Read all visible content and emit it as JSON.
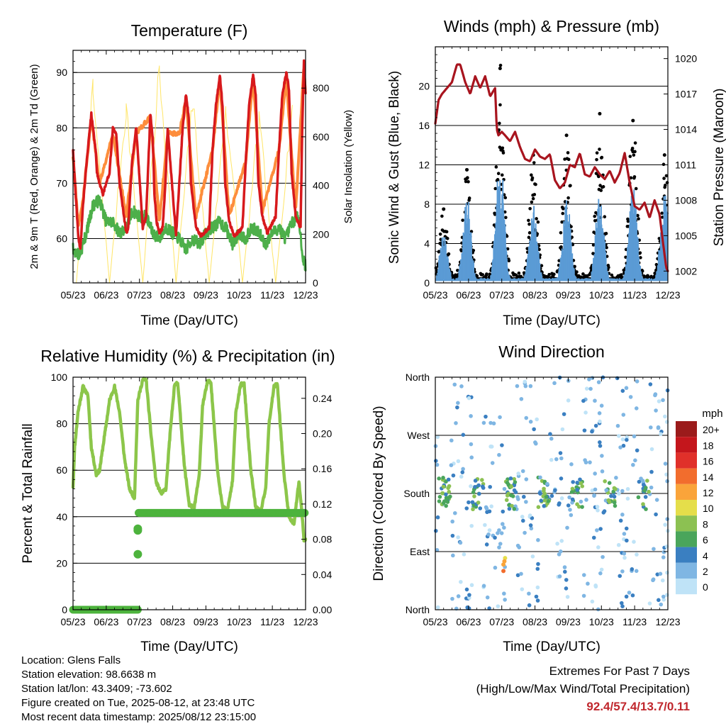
{
  "colors": {
    "temp_2m": "#d7191c",
    "temp_9m": "#fd8d3c",
    "dewpoint": "#4daf4a",
    "solar": "#ffe566",
    "wind": "#5b9bd5",
    "gust": "#000000",
    "pressure": "#a8141e",
    "rh": "#8cc64a",
    "precip": "#4db33d"
  },
  "chart_data": [
    {
      "type": "line",
      "id": "temperature",
      "title": "Temperature (F)",
      "xlabel": "Time (Day/UTC)",
      "ylabel": "2m & 9m T (Red, Orange) & 2m Td (Green)",
      "y2label": "Solar Insolation (Yellow)",
      "x_ticks": [
        "05/23",
        "06/23",
        "07/23",
        "08/23",
        "09/23",
        "10/23",
        "11/23",
        "12/23"
      ],
      "xlim": [
        0,
        7
      ],
      "ylim": [
        52,
        94
      ],
      "yticks": [
        60,
        70,
        80,
        90
      ],
      "y2lim": [
        0,
        955
      ],
      "y2ticks": [
        0,
        200,
        400,
        600,
        800
      ],
      "grid": "horizontal",
      "series": [
        {
          "color_key": "temp_2m",
          "x": [
            0,
            0.08,
            0.16,
            0.22,
            0.3,
            0.38,
            0.55,
            0.6,
            0.64,
            0.68,
            0.72,
            0.8,
            0.9,
            1.1,
            1.2,
            1.3,
            1.4,
            1.58,
            1.62,
            1.66,
            1.7,
            1.78,
            1.9,
            2.1,
            2.2,
            2.33,
            2.4,
            2.45,
            2.52,
            2.6,
            2.7,
            2.78,
            2.85,
            3.1,
            3.2,
            3.3,
            3.4,
            3.48,
            3.55,
            3.7,
            3.85,
            4.1,
            4.2,
            4.3,
            4.42,
            4.5,
            4.58,
            4.7,
            4.85,
            5.1,
            5.2,
            5.3,
            5.42,
            5.5,
            5.58,
            5.7,
            5.85,
            6.1,
            6.2,
            6.3,
            6.42,
            6.5,
            6.58,
            6.7,
            6.85,
            6.9,
            6.95,
            7.0
          ],
          "y": [
            76,
            68,
            60,
            58,
            66,
            72,
            82.5,
            80,
            78,
            76,
            72,
            70,
            68,
            72,
            80,
            79,
            70,
            62,
            61,
            62,
            66,
            74,
            80,
            62,
            64,
            82.5,
            78,
            68,
            63,
            61,
            62,
            70,
            80,
            60.5,
            70,
            80,
            86,
            82,
            70,
            62,
            60.5,
            62,
            76,
            84,
            89.5,
            84,
            70,
            63,
            60.5,
            62,
            74,
            84,
            89.5,
            86,
            70,
            64,
            61,
            64,
            76,
            86,
            90,
            87,
            72,
            64,
            62,
            80,
            92,
            86
          ]
        },
        {
          "color_key": "temp_9m",
          "x": [
            0,
            0.16,
            0.3,
            0.55,
            0.8,
            1.2,
            1.6,
            1.9,
            2.33,
            2.6,
            2.85,
            3.2,
            3.4,
            3.7,
            4.2,
            4.42,
            4.7,
            5.2,
            5.42,
            5.7,
            6.2,
            6.42,
            6.7,
            6.95,
            7.0
          ],
          "y": [
            75,
            62,
            67,
            82,
            70,
            79,
            64,
            79,
            82,
            63,
            79,
            79,
            85,
            64,
            76,
            89,
            64,
            74,
            89,
            65,
            76,
            89,
            65,
            91,
            86
          ]
        },
        {
          "color_key": "dewpoint",
          "x": [
            0,
            0.2,
            0.4,
            0.6,
            0.8,
            1.0,
            1.2,
            1.4,
            1.6,
            1.8,
            2.0,
            2.2,
            2.4,
            2.6,
            2.8,
            3.0,
            3.2,
            3.4,
            3.6,
            3.8,
            4.0,
            4.2,
            4.4,
            4.6,
            4.8,
            5.0,
            5.2,
            5.4,
            5.6,
            5.8,
            6.0,
            6.2,
            6.4,
            6.6,
            6.8,
            6.9,
            7.0
          ],
          "y": [
            58,
            57,
            61,
            66,
            67,
            63,
            63,
            61,
            62,
            65,
            64,
            64,
            61,
            60,
            62,
            61,
            60,
            58,
            60,
            59,
            61,
            62,
            63,
            62,
            59,
            61,
            60,
            62,
            61,
            59,
            61,
            62,
            60,
            63,
            64,
            57,
            55
          ]
        },
        {
          "color_key": "solar",
          "axis": "y2",
          "x": [
            0.1,
            0.6,
            1.1,
            1.6,
            2.1,
            2.6,
            3.1,
            3.6,
            4.1,
            4.6,
            5.1,
            5.6,
            6.1,
            6.6
          ],
          "y": [
            0,
            840,
            0,
            780,
            0,
            950,
            0,
            800,
            0,
            780,
            0,
            720,
            0,
            790
          ]
        }
      ]
    },
    {
      "type": "scatter",
      "id": "winds",
      "title": "Winds (mph) & Pressure (mb)",
      "xlabel": "Time (Day/UTC)",
      "ylabel": "Sonic Wind & Gust (Blue, Black)",
      "y2label": "Station Pressure (Maroon)",
      "x_ticks": [
        "05/23",
        "06/23",
        "07/23",
        "08/23",
        "09/23",
        "10/23",
        "11/23",
        "12/23"
      ],
      "xlim": [
        0,
        7
      ],
      "ylim": [
        0,
        24
      ],
      "yticks": [
        0,
        4,
        8,
        12,
        16,
        20
      ],
      "y2lim": [
        1001,
        1021
      ],
      "y2ticks": [
        1002,
        1005,
        1008,
        1011,
        1014,
        1017,
        1020
      ],
      "grid": "horizontal",
      "wind_peaks": [
        [
          0.25,
          5
        ],
        [
          0.95,
          9
        ],
        [
          1.95,
          13.5
        ],
        [
          2.95,
          8
        ],
        [
          3.95,
          9
        ],
        [
          4.95,
          9.5
        ],
        [
          5.95,
          10
        ],
        [
          6.9,
          9.5
        ]
      ],
      "gust_peaks": [
        [
          0.25,
          7.5
        ],
        [
          0.95,
          11.5
        ],
        [
          1.95,
          21.8
        ],
        [
          2.95,
          13
        ],
        [
          3.95,
          15
        ],
        [
          4.95,
          17.2
        ],
        [
          5.95,
          16.5
        ],
        [
          6.9,
          13
        ]
      ],
      "pressure": {
        "x": [
          0,
          0.1,
          0.2,
          0.35,
          0.5,
          0.65,
          0.75,
          0.9,
          1.05,
          1.2,
          1.35,
          1.5,
          1.65,
          1.8,
          1.85,
          1.9,
          2.0,
          2.1,
          2.25,
          2.4,
          2.55,
          2.7,
          2.85,
          3.0,
          3.15,
          3.3,
          3.45,
          3.6,
          3.75,
          3.9,
          4.05,
          4.2,
          4.35,
          4.5,
          4.65,
          4.8,
          4.95,
          5.1,
          5.25,
          5.4,
          5.55,
          5.7,
          5.85,
          6.0,
          6.15,
          6.3,
          6.45,
          6.6,
          6.75,
          6.85,
          6.95,
          7.0
        ],
        "y": [
          1014.5,
          1016.5,
          1017,
          1017.5,
          1018,
          1019.5,
          1019.5,
          1018,
          1017,
          1018.5,
          1017.5,
          1018.5,
          1016.8,
          1017.5,
          1014,
          1013.5,
          1013.8,
          1013.5,
          1013,
          1013.8,
          1012.5,
          1011.5,
          1011.3,
          1012.3,
          1011.7,
          1011.5,
          1011.9,
          1009.7,
          1009,
          1009.5,
          1011,
          1010.8,
          1012,
          1010.2,
          1010,
          1010.8,
          1010.2,
          1009.8,
          1010.5,
          1009.5,
          1010.3,
          1012,
          1009.5,
          1007.5,
          1007.2,
          1007.8,
          1006.5,
          1008,
          1006.8,
          1004.5,
          1002.3,
          1002
        ]
      }
    },
    {
      "type": "line",
      "id": "humidity",
      "title": "Relative Humidity (%) & Precipitation (in)",
      "xlabel": "Time (Day/UTC)",
      "ylabel": "Percent & Total Rainfall",
      "x_ticks": [
        "05/23",
        "06/23",
        "07/23",
        "08/23",
        "09/23",
        "10/23",
        "11/23",
        "12/23"
      ],
      "xlim": [
        0,
        7
      ],
      "ylim": [
        0,
        100
      ],
      "yticks": [
        0,
        20,
        40,
        60,
        80,
        100
      ],
      "y2lim": [
        0,
        0.264
      ],
      "y2ticks": [
        0.0,
        0.04,
        0.08,
        0.12,
        0.16,
        0.2,
        0.24
      ],
      "grid": "horizontal",
      "series": [
        {
          "color_key": "rh",
          "x": [
            0,
            0.05,
            0.15,
            0.3,
            0.45,
            0.55,
            0.7,
            0.8,
            0.95,
            1.1,
            1.25,
            1.4,
            1.55,
            1.7,
            1.85,
            1.95,
            2.1,
            2.2,
            2.35,
            2.5,
            2.65,
            2.8,
            2.9,
            3.05,
            3.15,
            3.35,
            3.5,
            3.65,
            3.8,
            3.9,
            4.05,
            4.15,
            4.35,
            4.5,
            4.65,
            4.8,
            4.9,
            5.05,
            5.15,
            5.35,
            5.5,
            5.65,
            5.8,
            5.9,
            6.05,
            6.15,
            6.35,
            6.5,
            6.65,
            6.8,
            6.9,
            6.95,
            7.0
          ],
          "y": [
            53,
            70,
            85,
            96,
            92,
            70,
            58,
            60,
            75,
            90,
            96,
            85,
            65,
            52,
            48,
            90,
            99,
            99,
            75,
            55,
            50,
            52,
            72,
            96,
            98,
            62,
            45,
            44,
            58,
            88,
            98,
            98,
            60,
            44,
            43,
            55,
            85,
            97,
            97,
            60,
            44,
            42,
            52,
            80,
            96,
            97,
            58,
            40,
            37,
            55,
            40,
            30,
            30
          ]
        },
        {
          "color_key": "precip",
          "axis": "y2",
          "x": [
            0,
            1.95,
            1.95,
            1.96,
            1.96,
            1.97,
            2.0,
            7.0
          ],
          "y": [
            0.0,
            0.0,
            0.063,
            0.09,
            0.092,
            0.11,
            0.11,
            0.11
          ]
        }
      ]
    },
    {
      "type": "scatter",
      "id": "wind_direction",
      "title": "Wind Direction",
      "xlabel": "Time (Day/UTC)",
      "ylabel": "Direction (Colored By Speed)",
      "x_ticks": [
        "05/23",
        "06/23",
        "07/23",
        "08/23",
        "09/23",
        "10/23",
        "11/23",
        "12/23"
      ],
      "xlim": [
        0,
        7
      ],
      "ylim": [
        0,
        360
      ],
      "yticks": [
        0,
        90,
        180,
        270,
        360
      ],
      "ytick_labels": [
        "North",
        "East",
        "South",
        "West",
        "North"
      ],
      "grid": "horizontal",
      "legend_title": "mph",
      "legend_placement": "right",
      "legend_labels": [
        "20+",
        "18",
        "16",
        "14",
        "12",
        "10",
        "8",
        "6",
        "4",
        "2",
        "0"
      ],
      "legend_colors": [
        "#9b1b1b",
        "#c4161c",
        "#e0302a",
        "#f26d2d",
        "#faa43a",
        "#e5de4a",
        "#8cc152",
        "#4aa55b",
        "#3a7fc1",
        "#7fb6e3",
        "#bfe3f7"
      ]
    }
  ],
  "info": {
    "location": "Location: Glens Falls",
    "elevation": "Station elevation: 98.6638 m",
    "latlon": "Station lat/lon: 43.3409; -73.602",
    "created": "Figure created on Tue, 2025-08-12, at 23:48 UTC",
    "recent": "Most recent data timestamp: 2025/08/12 23:15:00"
  },
  "extremes": {
    "line1": "Extremes For Past 7 Days",
    "line2": "(High/Low/Max Wind/Total Precipitation)",
    "values": "92.4/57.4/13.7/0.11"
  }
}
